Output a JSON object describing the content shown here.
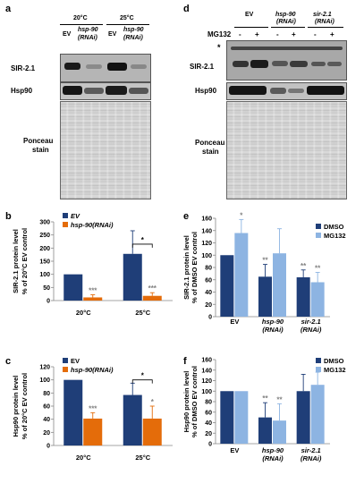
{
  "panels": {
    "a": "a",
    "b": "b",
    "c": "c",
    "d": "d",
    "e": "e",
    "f": "f"
  },
  "blot_a": {
    "temps": [
      "20°C",
      "25°C"
    ],
    "lanes": [
      "EV",
      "hsp-90",
      "(RNAi)",
      "EV",
      "hsp-90",
      "(RNAi)"
    ],
    "rows": [
      "SIR-2.1",
      "Hsp90",
      "Ponceau",
      "stain"
    ]
  },
  "blot_d": {
    "groups": [
      "EV",
      "hsp-90",
      "(RNAi)",
      "sir-2.1",
      "(RNAi)"
    ],
    "treatment_label": "MG132",
    "signs": [
      "-",
      "+",
      "-",
      "+",
      "-",
      "+"
    ],
    "asterisk": "*",
    "rows": [
      "SIR-2.1",
      "Hsp90",
      "Ponceau",
      "stain"
    ]
  },
  "colors": {
    "ev": "#1f3e78",
    "rnai": "#e46c0a",
    "dmso": "#1f3e78",
    "mg132": "#8db4e2",
    "sig": "#808080"
  },
  "chart_data": [
    {
      "id": "b",
      "type": "bar",
      "ylabel_lines": [
        "SIR-2.1 protein level",
        "% of 20°C EV control"
      ],
      "ylim": [
        0,
        300
      ],
      "yticks": [
        0,
        50,
        100,
        150,
        200,
        250,
        300
      ],
      "categories": [
        "20°C",
        "25°C"
      ],
      "legend": [
        "EV",
        "hsp-90(RNAi)"
      ],
      "legend_italic": [
        true,
        true
      ],
      "series": [
        {
          "name": "EV",
          "values": [
            100,
            178
          ],
          "err": [
            0,
            88
          ]
        },
        {
          "name": "hsp-90(RNAi)",
          "values": [
            12,
            18
          ],
          "err": [
            10,
            12
          ]
        }
      ],
      "stars": [
        {
          "cat": 0,
          "series": 1,
          "text": "***"
        },
        {
          "cat": 1,
          "series": 1,
          "text": "***"
        }
      ],
      "brackets": [
        {
          "cat": 1,
          "y": 215,
          "text": "*"
        }
      ]
    },
    {
      "id": "c",
      "type": "bar",
      "ylabel_lines": [
        "Hsp90 protein level",
        "% of 20°C EV control"
      ],
      "ylim": [
        0,
        120
      ],
      "yticks": [
        0,
        20,
        40,
        60,
        80,
        100,
        120
      ],
      "categories": [
        "20°C",
        "25°C"
      ],
      "legend": [
        "EV",
        "hsp-90(RNAi)"
      ],
      "legend_italic": [
        false,
        true
      ],
      "series": [
        {
          "name": "EV",
          "values": [
            100,
            77
          ],
          "err": [
            0,
            18
          ]
        },
        {
          "name": "hsp-90(RNAi)",
          "values": [
            41,
            41
          ],
          "err": [
            9,
            19
          ]
        }
      ],
      "stars": [
        {
          "cat": 0,
          "series": 1,
          "text": "***"
        },
        {
          "cat": 1,
          "series": 1,
          "text": "*"
        }
      ],
      "brackets": [
        {
          "cat": 1,
          "y": 100,
          "text": "*"
        }
      ]
    },
    {
      "id": "e",
      "type": "bar",
      "ylabel_lines": [
        "SIR-2.1 protein level",
        "% of DMSO EV control"
      ],
      "ylim": [
        0,
        160
      ],
      "yticks": [
        0,
        20,
        40,
        60,
        80,
        100,
        120,
        140,
        160
      ],
      "categories": [
        "EV",
        "hsp-90",
        "sir-2.1"
      ],
      "categories_line2": [
        "",
        "(RNAi)",
        "(RNAi)"
      ],
      "legend": [
        "DMSO",
        "MG132"
      ],
      "legend_italic": [
        false,
        false
      ],
      "series": [
        {
          "name": "DMSO",
          "values": [
            100,
            65,
            64
          ],
          "err": [
            0,
            20,
            12
          ]
        },
        {
          "name": "MG132",
          "values": [
            136,
            103,
            56
          ],
          "err": [
            22,
            40,
            16
          ]
        }
      ],
      "stars": [
        {
          "cat": 0,
          "series": 1,
          "text": "*"
        },
        {
          "cat": 1,
          "series": 0,
          "text": "**"
        },
        {
          "cat": 2,
          "series": 0,
          "text": "**"
        },
        {
          "cat": 2,
          "series": 1,
          "text": "**"
        }
      ],
      "brackets": []
    },
    {
      "id": "f",
      "type": "bar",
      "ylabel_lines": [
        "Hsp90 protein level",
        "% of DMSO EV control"
      ],
      "ylim": [
        0,
        160
      ],
      "yticks": [
        0,
        20,
        40,
        60,
        80,
        100,
        120,
        140,
        160
      ],
      "categories": [
        "EV",
        "hsp-90",
        "sir-2.1"
      ],
      "categories_line2": [
        "",
        "(RNAi)",
        "(RNAi)"
      ],
      "legend": [
        "DMSO",
        "MG132"
      ],
      "legend_italic": [
        false,
        false
      ],
      "series": [
        {
          "name": "DMSO",
          "values": [
            100,
            50,
            100
          ],
          "err": [
            0,
            28,
            32
          ]
        },
        {
          "name": "MG132",
          "values": [
            100,
            44,
            112
          ],
          "err": [
            0,
            32,
            24
          ]
        }
      ],
      "stars": [
        {
          "cat": 1,
          "series": 0,
          "text": "**"
        },
        {
          "cat": 1,
          "series": 1,
          "text": "**"
        }
      ],
      "brackets": []
    }
  ]
}
